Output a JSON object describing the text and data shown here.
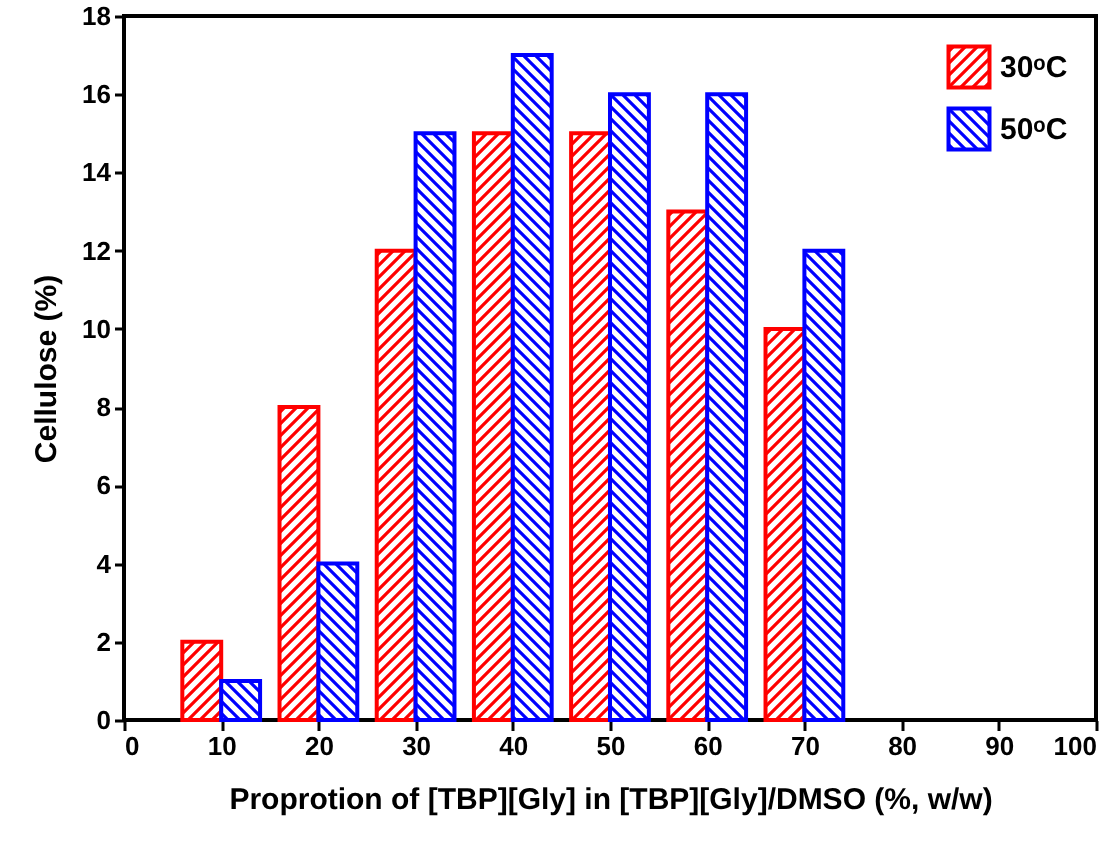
{
  "chart_data": {
    "type": "bar",
    "xlabel": "Proprotion of [TBP][Gly] in [TBP][Gly]/DMSO (%, w/w)",
    "ylabel": "Cellulose (%)",
    "x": [
      10,
      20,
      30,
      40,
      50,
      60,
      70
    ],
    "series": [
      {
        "name": "30ᵒC",
        "color": "#ff0000",
        "values": [
          2,
          8,
          12,
          15,
          15,
          13,
          10
        ]
      },
      {
        "name": "50ᵒC",
        "color": "#0000ff",
        "values": [
          1,
          4,
          15,
          17,
          16,
          16,
          12
        ]
      }
    ],
    "xlim": [
      0,
      100
    ],
    "xticks": [
      0,
      10,
      20,
      30,
      40,
      50,
      60,
      70,
      80,
      90,
      100
    ],
    "ylim": [
      0,
      18
    ],
    "yticks": [
      0,
      2,
      4,
      6,
      8,
      10,
      12,
      14,
      16,
      18
    ],
    "legend": "top right",
    "grid": false
  }
}
